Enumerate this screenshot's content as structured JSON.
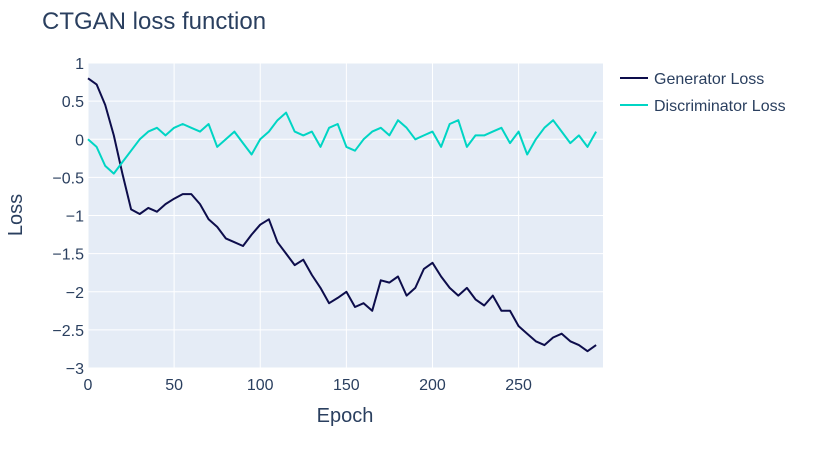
{
  "chart_data": {
    "type": "line",
    "title": "CTGAN loss function",
    "xlabel": "Epoch",
    "ylabel": "Loss",
    "xlim": [
      0,
      299
    ],
    "ylim": [
      -3,
      1
    ],
    "x_ticks": [
      0,
      50,
      100,
      150,
      200,
      250
    ],
    "x_tick_labels": [
      "0",
      "50",
      "100",
      "150",
      "200",
      "250"
    ],
    "y_ticks": [
      1,
      0.5,
      0,
      -0.5,
      -1,
      -1.5,
      -2,
      -2.5,
      -3
    ],
    "y_tick_labels": [
      "1",
      "0.5",
      "0",
      "−0.5",
      "−1",
      "−1.5",
      "−2",
      "−2.5",
      "−3"
    ],
    "grid": true,
    "legend_position": "top-right",
    "x_step": 5,
    "series": [
      {
        "name": "Generator Loss",
        "color": "#0d0d4b",
        "values": [
          0.8,
          0.72,
          0.45,
          0.05,
          -0.45,
          -0.92,
          -0.98,
          -0.9,
          -0.95,
          -0.85,
          -0.78,
          -0.72,
          -0.72,
          -0.85,
          -1.05,
          -1.15,
          -1.3,
          -1.35,
          -1.4,
          -1.25,
          -1.12,
          -1.05,
          -1.35,
          -1.5,
          -1.65,
          -1.58,
          -1.78,
          -1.95,
          -2.15,
          -2.08,
          -2.0,
          -2.2,
          -2.15,
          -2.25,
          -1.85,
          -1.88,
          -1.8,
          -2.05,
          -1.95,
          -1.7,
          -1.62,
          -1.8,
          -1.95,
          -2.05,
          -1.95,
          -2.1,
          -2.18,
          -2.05,
          -2.25,
          -2.25,
          -2.45,
          -2.55,
          -2.65,
          -2.7,
          -2.6,
          -2.55,
          -2.65,
          -2.7,
          -2.78,
          -2.7
        ]
      },
      {
        "name": "Discriminator Loss",
        "color": "#00d5c4",
        "values": [
          0.0,
          -0.1,
          -0.35,
          -0.45,
          -0.3,
          -0.15,
          0.0,
          0.1,
          0.15,
          0.05,
          0.15,
          0.2,
          0.15,
          0.1,
          0.2,
          -0.1,
          0.0,
          0.1,
          -0.05,
          -0.2,
          0.0,
          0.1,
          0.25,
          0.35,
          0.1,
          0.05,
          0.1,
          -0.1,
          0.15,
          0.2,
          -0.1,
          -0.15,
          0.0,
          0.1,
          0.15,
          0.05,
          0.25,
          0.15,
          0.0,
          0.05,
          0.1,
          -0.1,
          0.2,
          0.25,
          -0.1,
          0.05,
          0.05,
          0.1,
          0.15,
          -0.05,
          0.1,
          -0.2,
          0.0,
          0.15,
          0.25,
          0.1,
          -0.05,
          0.05,
          -0.1,
          0.1
        ]
      }
    ]
  }
}
